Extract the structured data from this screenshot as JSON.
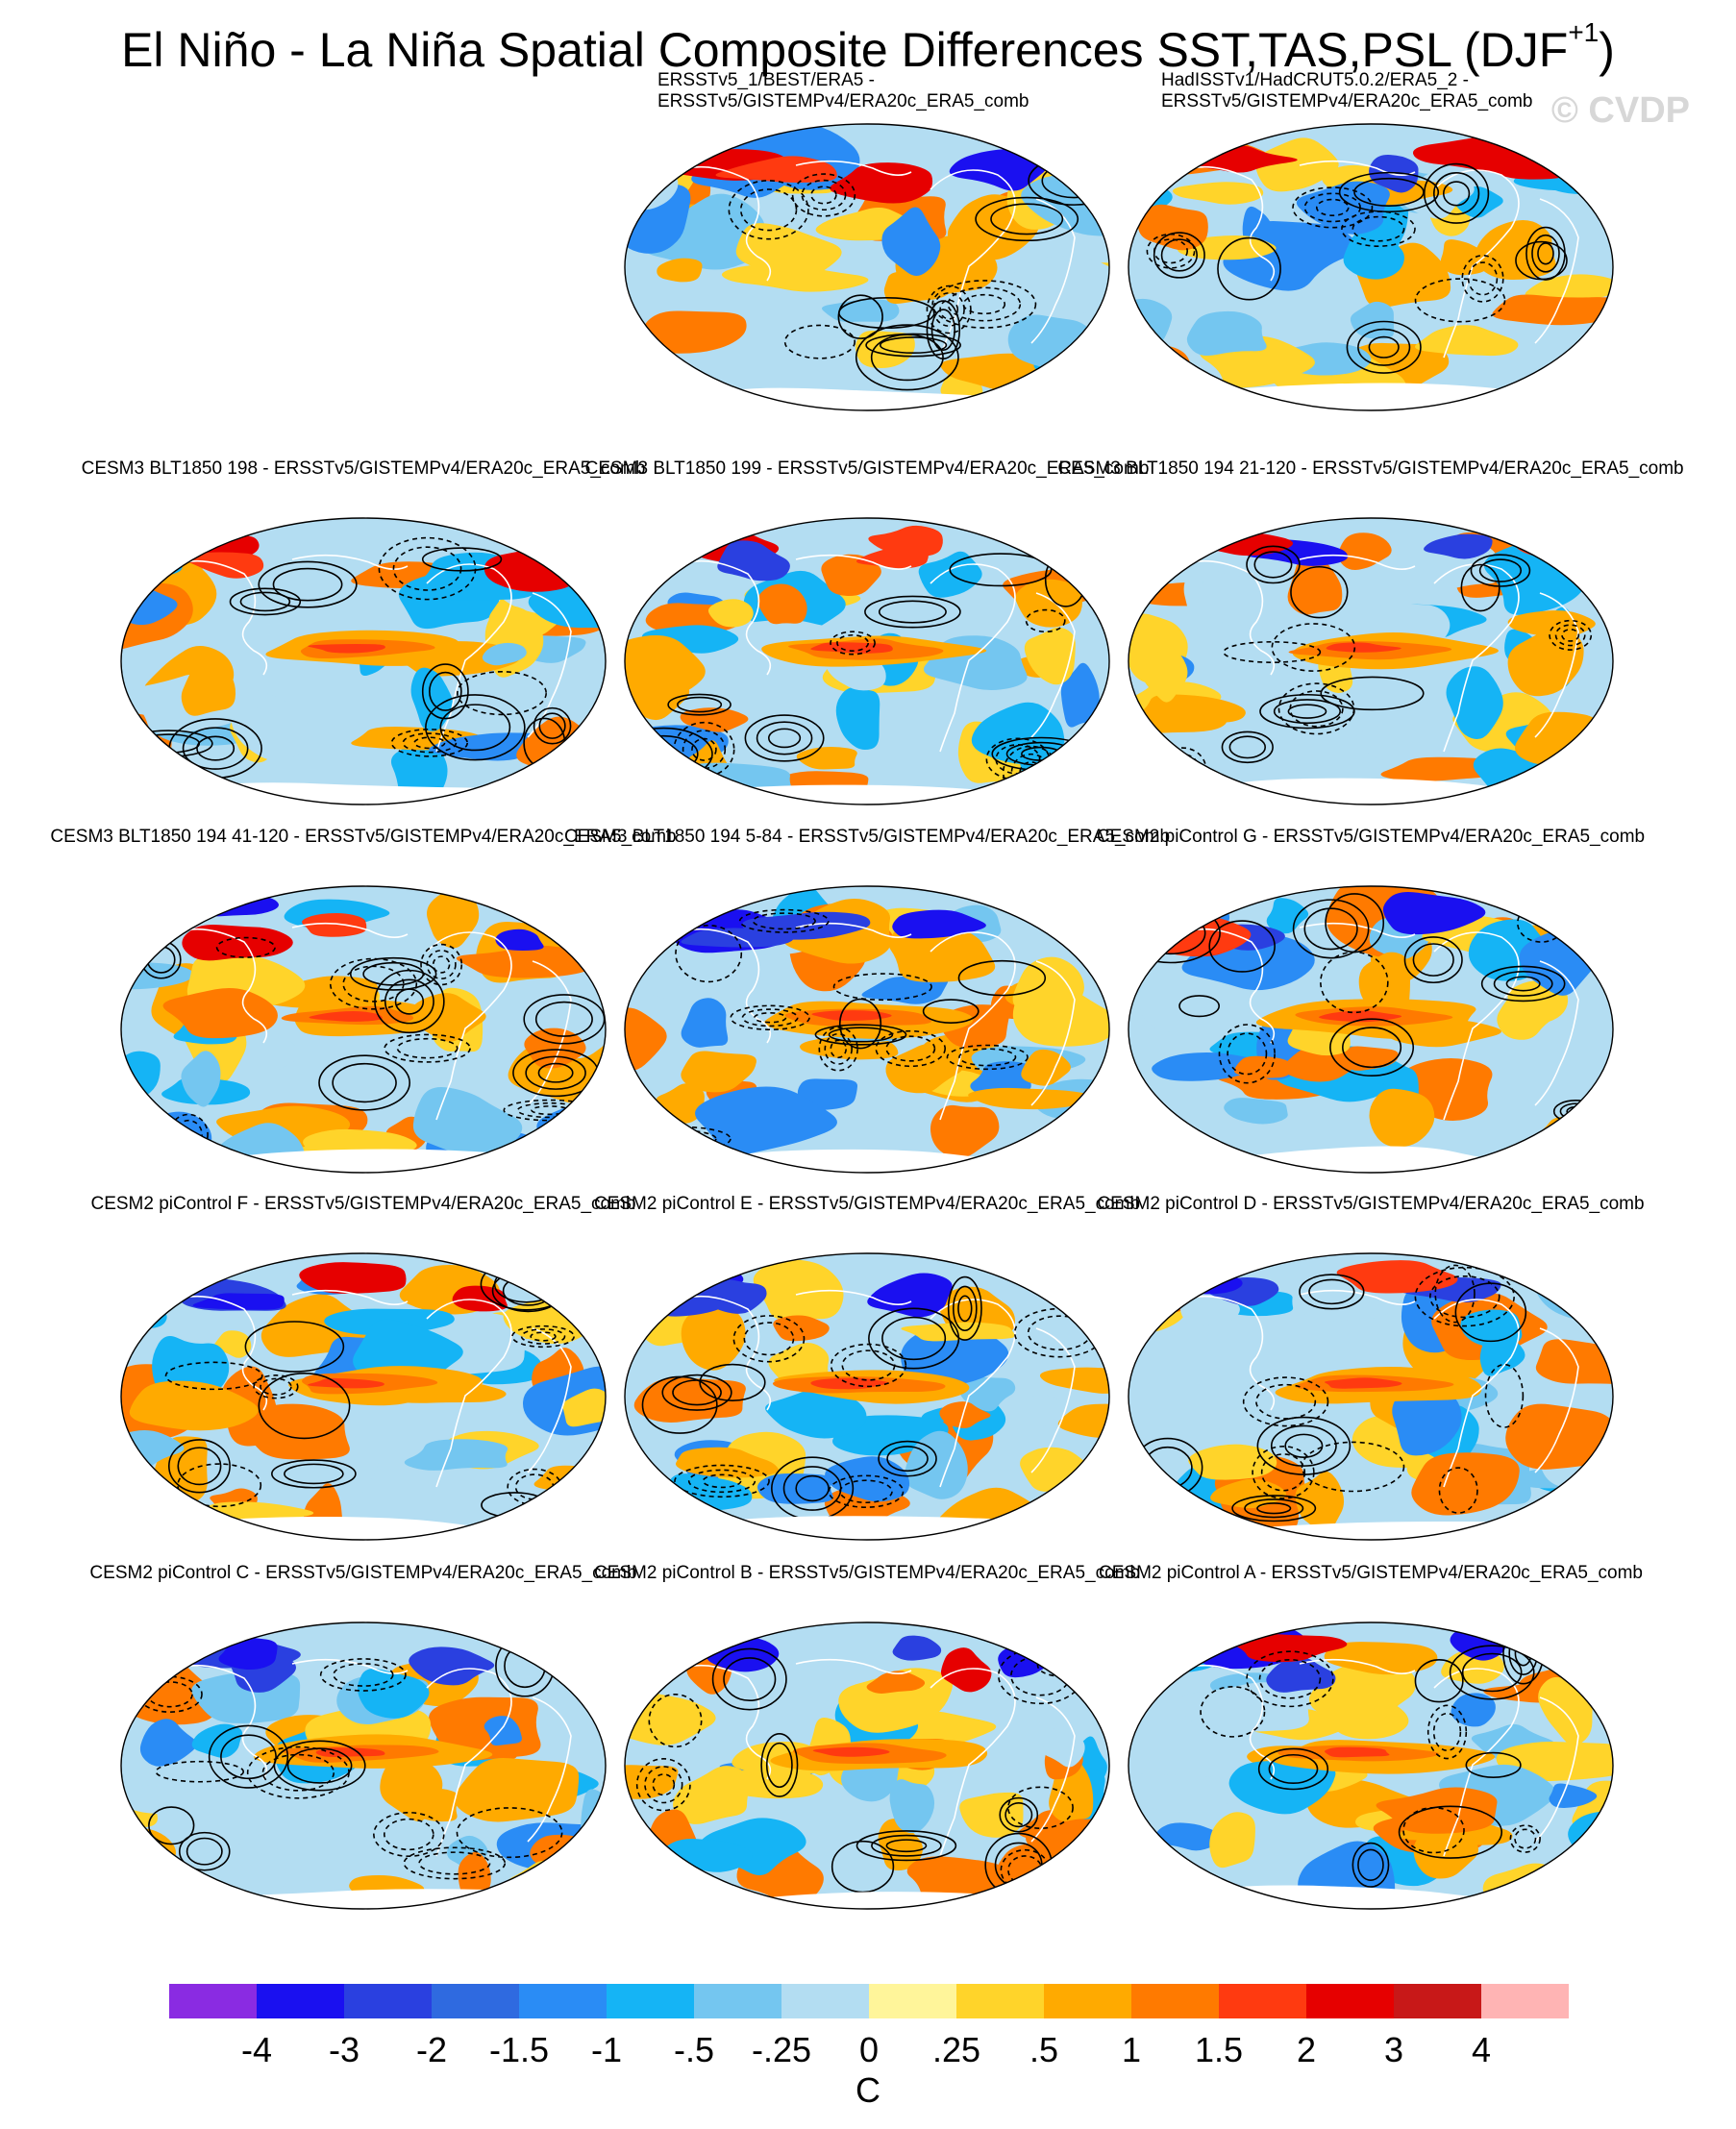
{
  "title": {
    "text": "El Niño - La Niña Spatial Composite Differences SST,TAS,PSL (DJF",
    "superscript": "+1",
    "close": ")"
  },
  "watermark": "© CVDP",
  "panels": [
    {
      "label_lines": [
        "ERSSTv5_1/BEST/ERA5 -",
        "ERSSTv5/GISTEMPv4/ERA20c_ERA5_comb"
      ],
      "seed": 11,
      "variant": "obs"
    },
    {
      "label_lines": [
        "HadISSTv1/HadCRUT5.0.2/ERA5_2 -",
        "ERSSTv5/GISTEMPv4/ERA20c_ERA5_comb"
      ],
      "seed": 23,
      "variant": "obs"
    },
    {
      "label_lines": [
        "CESM3 BLT1850 198 - ERSSTv5/GISTEMPv4/ERA20c_ERA5_comb"
      ],
      "seed": 37,
      "variant": "model"
    },
    {
      "label_lines": [
        "CESM3 BLT1850 199 - ERSSTv5/GISTEMPv4/ERA20c_ERA5_comb"
      ],
      "seed": 41,
      "variant": "model"
    },
    {
      "label_lines": [
        "CESM3 BLT1850 194 21-120 - ERSSTv5/GISTEMPv4/ERA20c_ERA5_comb"
      ],
      "seed": 53,
      "variant": "model"
    },
    {
      "label_lines": [
        "CESM3 BLT1850 194 41-120 - ERSSTv5/GISTEMPv4/ERA20c_ERA5_comb"
      ],
      "seed": 61,
      "variant": "model"
    },
    {
      "label_lines": [
        "CESM3 BLT1850 194 5-84 - ERSSTv5/GISTEMPv4/ERA20c_ERA5_comb"
      ],
      "seed": 73,
      "variant": "model"
    },
    {
      "label_lines": [
        "CESM2 piControl G - ERSSTv5/GISTEMPv4/ERA20c_ERA5_comb"
      ],
      "seed": 83,
      "variant": "model"
    },
    {
      "label_lines": [
        "CESM2 piControl F - ERSSTv5/GISTEMPv4/ERA20c_ERA5_comb"
      ],
      "seed": 97,
      "variant": "model"
    },
    {
      "label_lines": [
        "CESM2 piControl E - ERSSTv5/GISTEMPv4/ERA20c_ERA5_comb"
      ],
      "seed": 101,
      "variant": "model"
    },
    {
      "label_lines": [
        "CESM2 piControl D - ERSSTv5/GISTEMPv4/ERA20c_ERA5_comb"
      ],
      "seed": 113,
      "variant": "model"
    },
    {
      "label_lines": [
        "CESM2 piControl C - ERSSTv5/GISTEMPv4/ERA20c_ERA5_comb"
      ],
      "seed": 127,
      "variant": "model"
    },
    {
      "label_lines": [
        "CESM2 piControl B - ERSSTv5/GISTEMPv4/ERA20c_ERA5_comb"
      ],
      "seed": 131,
      "variant": "model"
    },
    {
      "label_lines": [
        "CESM2 piControl A - ERSSTv5/GISTEMPv4/ERA20c_ERA5_comb"
      ],
      "seed": 149,
      "variant": "model"
    }
  ],
  "colorbar": {
    "colors": [
      "#8a2be2",
      "#1a10f0",
      "#2a40e0",
      "#2f6ae0",
      "#2a8cf5",
      "#15b4f5",
      "#74c6f0",
      "#b3ddf2",
      "#fff59a",
      "#ffd42a",
      "#ffaa00",
      "#ff7a00",
      "#ff3a10",
      "#e60000",
      "#c81818",
      "#ffb4b4"
    ],
    "tick_labels": [
      "-4",
      "-3",
      "-2",
      "-1.5",
      "-1",
      "-.5",
      "-.25",
      "0",
      ".25",
      ".5",
      "1",
      "1.5",
      "2",
      "3",
      "4"
    ],
    "units": "C"
  }
}
